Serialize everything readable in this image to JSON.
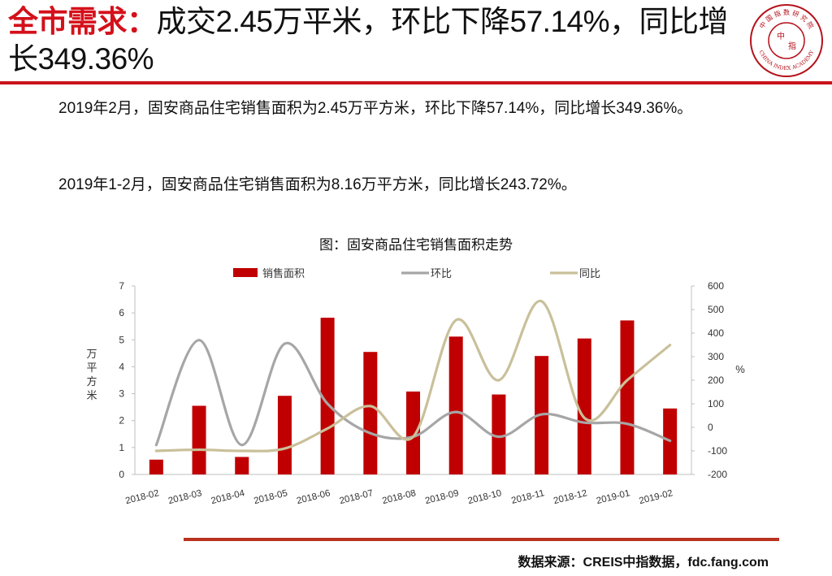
{
  "slide": {
    "title_highlight": "全市需求：",
    "title_rest": "成交2.45万平米，环比下降57.14%，同比增长349.36%",
    "paragraph1": "2019年2月，固安商品住宅销售面积为2.45万平方米，环比下降57.14%，同比增长349.36%。",
    "paragraph2": "2019年1-2月，固安商品住宅销售面积为8.16万平方米，同比增长243.72%。",
    "source": "数据来源：CREIS中指数据，fdc.fang.com",
    "logo": {
      "icon": "china-index-academy-seal",
      "top_text": "中 国 指 数 研 究 院",
      "bottom_text": "CHINA INDEX ACADEMY",
      "center_left": "中",
      "center_right": "指",
      "color": "#b5121b"
    }
  },
  "chart_data": {
    "type": "bar",
    "title": "图：固安商品住宅销售面积走势",
    "categories": [
      "2018-02",
      "2018-03",
      "2018-04",
      "2018-05",
      "2018-06",
      "2018-07",
      "2018-08",
      "2018-09",
      "2018-10",
      "2018-11",
      "2018-12",
      "2019-01",
      "2019-02"
    ],
    "series": [
      {
        "name": "销售面积",
        "kind": "bar",
        "axis": "left",
        "color": "#c00000",
        "values": [
          0.55,
          2.55,
          0.65,
          2.92,
          5.82,
          4.55,
          3.08,
          5.12,
          2.97,
          4.4,
          5.05,
          5.72,
          2.45
        ]
      },
      {
        "name": "环比",
        "kind": "smooth-line",
        "axis": "right",
        "color": "#a6a6a6",
        "values": [
          -75,
          370,
          -75,
          355,
          100,
          -25,
          -40,
          65,
          -40,
          55,
          20,
          15,
          -57.14
        ]
      },
      {
        "name": "同比",
        "kind": "smooth-line",
        "axis": "right",
        "color": "#c9c09a",
        "values": [
          -100,
          -95,
          -100,
          -90,
          -5,
          90,
          -40,
          455,
          200,
          535,
          40,
          200,
          349.36
        ]
      }
    ],
    "ylabel_left": "万平方米",
    "ylim_left": [
      0,
      7
    ],
    "yticks_left": [
      0,
      1,
      2,
      3,
      4,
      5,
      6,
      7
    ],
    "ylabel_right": "%",
    "ylim_right": [
      -200,
      600
    ],
    "yticks_right": [
      -200,
      -100,
      0,
      100,
      200,
      300,
      400,
      500,
      600
    ],
    "legend_position": "top",
    "grid": false
  }
}
